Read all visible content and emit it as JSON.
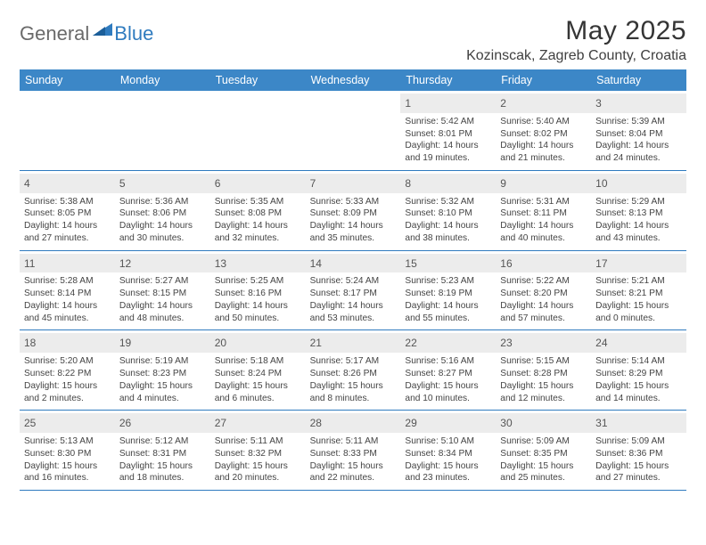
{
  "brand": {
    "part1": "General",
    "part2": "Blue"
  },
  "title": "May 2025",
  "location": "Kozinscak, Zagreb County, Croatia",
  "colors": {
    "header_bg": "#3c87c7",
    "header_text": "#ffffff",
    "border": "#2f7bbf",
    "daynum_bg": "#ececec",
    "text": "#444444",
    "brand_gray": "#6a6a6a",
    "brand_blue": "#2f7bbf",
    "background": "#ffffff"
  },
  "day_names": [
    "Sunday",
    "Monday",
    "Tuesday",
    "Wednesday",
    "Thursday",
    "Friday",
    "Saturday"
  ],
  "weeks": [
    [
      {
        "n": "",
        "empty": true
      },
      {
        "n": "",
        "empty": true
      },
      {
        "n": "",
        "empty": true
      },
      {
        "n": "",
        "empty": true
      },
      {
        "n": "1",
        "sunrise": "Sunrise: 5:42 AM",
        "sunset": "Sunset: 8:01 PM",
        "dl1": "Daylight: 14 hours",
        "dl2": "and 19 minutes."
      },
      {
        "n": "2",
        "sunrise": "Sunrise: 5:40 AM",
        "sunset": "Sunset: 8:02 PM",
        "dl1": "Daylight: 14 hours",
        "dl2": "and 21 minutes."
      },
      {
        "n": "3",
        "sunrise": "Sunrise: 5:39 AM",
        "sunset": "Sunset: 8:04 PM",
        "dl1": "Daylight: 14 hours",
        "dl2": "and 24 minutes."
      }
    ],
    [
      {
        "n": "4",
        "sunrise": "Sunrise: 5:38 AM",
        "sunset": "Sunset: 8:05 PM",
        "dl1": "Daylight: 14 hours",
        "dl2": "and 27 minutes."
      },
      {
        "n": "5",
        "sunrise": "Sunrise: 5:36 AM",
        "sunset": "Sunset: 8:06 PM",
        "dl1": "Daylight: 14 hours",
        "dl2": "and 30 minutes."
      },
      {
        "n": "6",
        "sunrise": "Sunrise: 5:35 AM",
        "sunset": "Sunset: 8:08 PM",
        "dl1": "Daylight: 14 hours",
        "dl2": "and 32 minutes."
      },
      {
        "n": "7",
        "sunrise": "Sunrise: 5:33 AM",
        "sunset": "Sunset: 8:09 PM",
        "dl1": "Daylight: 14 hours",
        "dl2": "and 35 minutes."
      },
      {
        "n": "8",
        "sunrise": "Sunrise: 5:32 AM",
        "sunset": "Sunset: 8:10 PM",
        "dl1": "Daylight: 14 hours",
        "dl2": "and 38 minutes."
      },
      {
        "n": "9",
        "sunrise": "Sunrise: 5:31 AM",
        "sunset": "Sunset: 8:11 PM",
        "dl1": "Daylight: 14 hours",
        "dl2": "and 40 minutes."
      },
      {
        "n": "10",
        "sunrise": "Sunrise: 5:29 AM",
        "sunset": "Sunset: 8:13 PM",
        "dl1": "Daylight: 14 hours",
        "dl2": "and 43 minutes."
      }
    ],
    [
      {
        "n": "11",
        "sunrise": "Sunrise: 5:28 AM",
        "sunset": "Sunset: 8:14 PM",
        "dl1": "Daylight: 14 hours",
        "dl2": "and 45 minutes."
      },
      {
        "n": "12",
        "sunrise": "Sunrise: 5:27 AM",
        "sunset": "Sunset: 8:15 PM",
        "dl1": "Daylight: 14 hours",
        "dl2": "and 48 minutes."
      },
      {
        "n": "13",
        "sunrise": "Sunrise: 5:25 AM",
        "sunset": "Sunset: 8:16 PM",
        "dl1": "Daylight: 14 hours",
        "dl2": "and 50 minutes."
      },
      {
        "n": "14",
        "sunrise": "Sunrise: 5:24 AM",
        "sunset": "Sunset: 8:17 PM",
        "dl1": "Daylight: 14 hours",
        "dl2": "and 53 minutes."
      },
      {
        "n": "15",
        "sunrise": "Sunrise: 5:23 AM",
        "sunset": "Sunset: 8:19 PM",
        "dl1": "Daylight: 14 hours",
        "dl2": "and 55 minutes."
      },
      {
        "n": "16",
        "sunrise": "Sunrise: 5:22 AM",
        "sunset": "Sunset: 8:20 PM",
        "dl1": "Daylight: 14 hours",
        "dl2": "and 57 minutes."
      },
      {
        "n": "17",
        "sunrise": "Sunrise: 5:21 AM",
        "sunset": "Sunset: 8:21 PM",
        "dl1": "Daylight: 15 hours",
        "dl2": "and 0 minutes."
      }
    ],
    [
      {
        "n": "18",
        "sunrise": "Sunrise: 5:20 AM",
        "sunset": "Sunset: 8:22 PM",
        "dl1": "Daylight: 15 hours",
        "dl2": "and 2 minutes."
      },
      {
        "n": "19",
        "sunrise": "Sunrise: 5:19 AM",
        "sunset": "Sunset: 8:23 PM",
        "dl1": "Daylight: 15 hours",
        "dl2": "and 4 minutes."
      },
      {
        "n": "20",
        "sunrise": "Sunrise: 5:18 AM",
        "sunset": "Sunset: 8:24 PM",
        "dl1": "Daylight: 15 hours",
        "dl2": "and 6 minutes."
      },
      {
        "n": "21",
        "sunrise": "Sunrise: 5:17 AM",
        "sunset": "Sunset: 8:26 PM",
        "dl1": "Daylight: 15 hours",
        "dl2": "and 8 minutes."
      },
      {
        "n": "22",
        "sunrise": "Sunrise: 5:16 AM",
        "sunset": "Sunset: 8:27 PM",
        "dl1": "Daylight: 15 hours",
        "dl2": "and 10 minutes."
      },
      {
        "n": "23",
        "sunrise": "Sunrise: 5:15 AM",
        "sunset": "Sunset: 8:28 PM",
        "dl1": "Daylight: 15 hours",
        "dl2": "and 12 minutes."
      },
      {
        "n": "24",
        "sunrise": "Sunrise: 5:14 AM",
        "sunset": "Sunset: 8:29 PM",
        "dl1": "Daylight: 15 hours",
        "dl2": "and 14 minutes."
      }
    ],
    [
      {
        "n": "25",
        "sunrise": "Sunrise: 5:13 AM",
        "sunset": "Sunset: 8:30 PM",
        "dl1": "Daylight: 15 hours",
        "dl2": "and 16 minutes."
      },
      {
        "n": "26",
        "sunrise": "Sunrise: 5:12 AM",
        "sunset": "Sunset: 8:31 PM",
        "dl1": "Daylight: 15 hours",
        "dl2": "and 18 minutes."
      },
      {
        "n": "27",
        "sunrise": "Sunrise: 5:11 AM",
        "sunset": "Sunset: 8:32 PM",
        "dl1": "Daylight: 15 hours",
        "dl2": "and 20 minutes."
      },
      {
        "n": "28",
        "sunrise": "Sunrise: 5:11 AM",
        "sunset": "Sunset: 8:33 PM",
        "dl1": "Daylight: 15 hours",
        "dl2": "and 22 minutes."
      },
      {
        "n": "29",
        "sunrise": "Sunrise: 5:10 AM",
        "sunset": "Sunset: 8:34 PM",
        "dl1": "Daylight: 15 hours",
        "dl2": "and 23 minutes."
      },
      {
        "n": "30",
        "sunrise": "Sunrise: 5:09 AM",
        "sunset": "Sunset: 8:35 PM",
        "dl1": "Daylight: 15 hours",
        "dl2": "and 25 minutes."
      },
      {
        "n": "31",
        "sunrise": "Sunrise: 5:09 AM",
        "sunset": "Sunset: 8:36 PM",
        "dl1": "Daylight: 15 hours",
        "dl2": "and 27 minutes."
      }
    ]
  ]
}
